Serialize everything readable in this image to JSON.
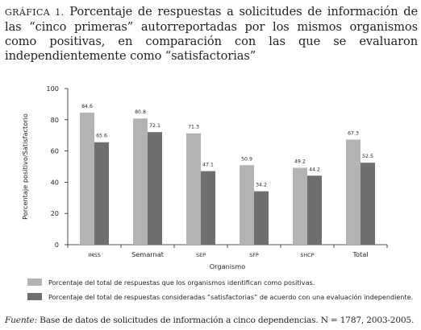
{
  "caption": {
    "lead": "GRÁFICA 1.",
    "text": "Porcentaje de respuestas a solicitudes de información de las “cinco primeras” autorreportadas por los mismos organismos como positivas, en comparación con las que se evaluaron independientemente como “satisfactorias”"
  },
  "chart_data": {
    "type": "bar",
    "categories": [
      "IMSS",
      "Semarnat",
      "SEP",
      "SFP",
      "SHCP",
      "Total"
    ],
    "series": [
      {
        "name": "Porcentaje del total de respuestas que los organismos identifican como positivas.",
        "values": [
          84.6,
          80.8,
          71.3,
          50.9,
          49.2,
          67.3
        ],
        "labels": [
          "84.6",
          "80.8",
          "71.3",
          "50.9",
          "49.2",
          "67.3"
        ],
        "color": "#b3b3b3"
      },
      {
        "name": "Porcentaje del total de respuestas consideradas “satisfactorias” de acuerdo con una evaluación independiente.",
        "values": [
          65.6,
          72.1,
          47.1,
          34.2,
          44.2,
          52.5
        ],
        "labels": [
          "65.6",
          "72.1",
          "47.1",
          "34.2",
          "44.2",
          "52.5"
        ],
        "color": "#6f6f6f"
      }
    ],
    "xlabel": "Organismo",
    "ylabel": "Porcentaje positivo/Satisfactorio",
    "ylim": [
      0,
      100
    ],
    "yticks": [
      0,
      20,
      40,
      60,
      80,
      100
    ],
    "ytick_labels": [
      "0",
      "20",
      "40",
      "60",
      "80",
      "100"
    ],
    "grid": false,
    "legend_position": "bottom"
  },
  "source": {
    "label": "Fuente:",
    "text": "Base de datos de solicitudes de información a cinco dependencias. N = 1787, 2003-2005."
  }
}
